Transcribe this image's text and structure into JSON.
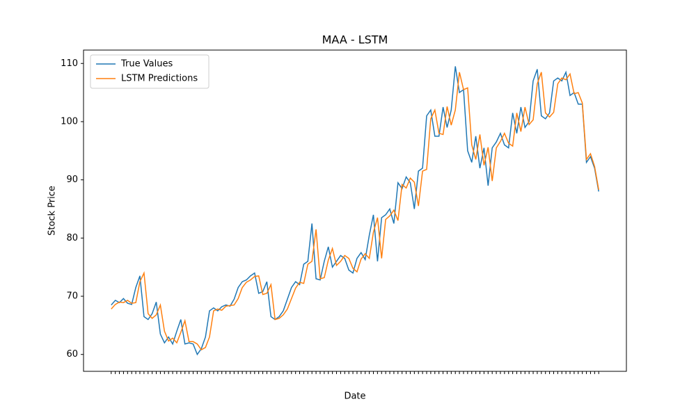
{
  "chart_data": {
    "type": "line",
    "title": "MAA - LSTM",
    "xlabel": "Date",
    "ylabel": "Stock Price",
    "categories": [
      null,
      null,
      null,
      null,
      null,
      null,
      null,
      null,
      null,
      null,
      null,
      null,
      null,
      null,
      null,
      null,
      null,
      null,
      null,
      null,
      null,
      null,
      null,
      null,
      null,
      null,
      null,
      null,
      null,
      null,
      null,
      null,
      null,
      null,
      null,
      null,
      null,
      null,
      null,
      null,
      null,
      null,
      null,
      null,
      null,
      null,
      null,
      null,
      null,
      null,
      null,
      null,
      null,
      null,
      null,
      null,
      null,
      null,
      null,
      null,
      null,
      null,
      null,
      null,
      null,
      null,
      null,
      null,
      null,
      null,
      null,
      null,
      null,
      null,
      null,
      null,
      null,
      null,
      null,
      null,
      null,
      null,
      null,
      null,
      null,
      null,
      null,
      null,
      null,
      null,
      null,
      null,
      null,
      null,
      null,
      null,
      null,
      null,
      null,
      null,
      null,
      null,
      null,
      null,
      null,
      null,
      null,
      null,
      null,
      null,
      null,
      null,
      null,
      null,
      null,
      null,
      null,
      null,
      null,
      null
    ],
    "series": [
      {
        "name": "True Values",
        "color": "#1f77b4",
        "values": [
          68.5,
          69.3,
          68.9,
          69.6,
          68.8,
          68.6,
          71.5,
          73.5,
          66.5,
          66.0,
          67.0,
          69.0,
          63.5,
          62.0,
          63.0,
          61.8,
          64.0,
          66.0,
          61.8,
          62.0,
          61.8,
          60.0,
          61.0,
          63.0,
          67.5,
          68.0,
          67.5,
          68.2,
          68.5,
          68.3,
          69.5,
          71.5,
          72.5,
          72.8,
          73.5,
          74.0,
          70.5,
          70.8,
          72.5,
          66.5,
          66.0,
          66.5,
          67.5,
          69.5,
          71.5,
          72.5,
          72.0,
          75.5,
          76.0,
          82.5,
          73.0,
          72.8,
          76.0,
          78.5,
          75.0,
          76.0,
          77.0,
          76.5,
          74.5,
          74.0,
          76.5,
          77.5,
          76.3,
          80.5,
          84.0,
          76.0,
          83.5,
          84.0,
          85.0,
          82.5,
          89.5,
          88.5,
          90.5,
          89.5,
          85.0,
          91.5,
          92.0,
          101.0,
          102.0,
          97.5,
          97.5,
          102.5,
          99.0,
          102.0,
          109.5,
          105.0,
          105.5,
          95.0,
          93.0,
          97.5,
          92.0,
          95.5,
          89.0,
          95.5,
          96.5,
          98.0,
          96.0,
          95.5,
          101.5,
          98.0,
          102.5,
          99.0,
          100.0,
          107.0,
          109.0,
          101.0,
          100.5,
          101.5,
          107.0,
          107.5,
          107.0,
          108.5,
          104.5,
          105.0,
          103.0,
          103.0,
          93.0,
          94.0,
          92.0,
          88.0
        ]
      },
      {
        "name": "LSTM Predictions",
        "color": "#ff7f0e",
        "values": [
          67.8,
          68.6,
          69.0,
          68.9,
          69.3,
          68.8,
          68.9,
          72.5,
          74.0,
          67.0,
          66.2,
          66.8,
          68.5,
          64.0,
          62.3,
          62.8,
          62.0,
          63.8,
          65.8,
          62.2,
          62.2,
          61.8,
          60.8,
          61.2,
          63.0,
          67.5,
          67.8,
          67.6,
          68.3,
          68.4,
          68.5,
          69.6,
          71.5,
          72.4,
          72.8,
          73.4,
          73.5,
          70.3,
          70.5,
          72.0,
          66.0,
          66.2,
          66.8,
          67.8,
          69.6,
          71.4,
          72.4,
          72.2,
          75.5,
          76.0,
          81.5,
          73.0,
          73.2,
          76.2,
          78.2,
          75.3,
          76.0,
          77.0,
          76.5,
          74.8,
          74.2,
          76.4,
          77.3,
          76.5,
          81.0,
          83.5,
          76.5,
          83.2,
          83.8,
          84.8,
          83.0,
          89.2,
          88.6,
          90.3,
          89.6,
          85.5,
          91.5,
          91.8,
          100.5,
          102.0,
          98.0,
          97.8,
          102.6,
          99.4,
          102.0,
          108.5,
          105.5,
          105.8,
          96.0,
          93.5,
          97.8,
          92.5,
          95.6,
          89.8,
          95.5,
          96.6,
          98.0,
          96.3,
          95.8,
          101.5,
          98.3,
          102.5,
          99.5,
          100.3,
          106.5,
          108.5,
          101.5,
          100.8,
          101.6,
          106.5,
          107.5,
          107.2,
          108.2,
          104.8,
          105.0,
          103.2,
          93.5,
          94.5,
          92.3,
          88.3
        ]
      }
    ],
    "ylim": [
      57.1,
      112.3
    ],
    "yticks": [
      60,
      70,
      80,
      90,
      100,
      110
    ],
    "legend": "upper left"
  }
}
